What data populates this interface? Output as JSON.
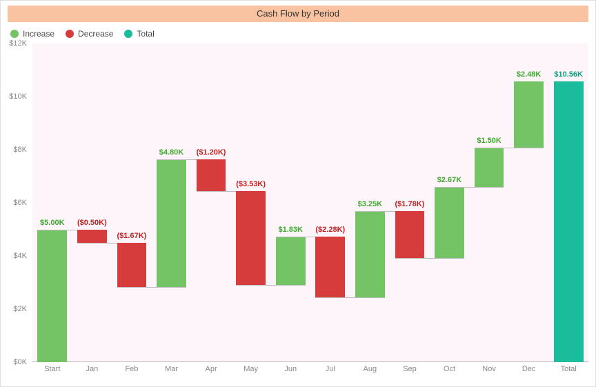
{
  "chart": {
    "type": "waterfall",
    "title": "Cash Flow by Period",
    "title_bg": "#f9c3a1",
    "title_color": "#333333",
    "plot_bg": "#fdf5f9",
    "axis_color": "#b8b8b8",
    "tick_color": "#888888",
    "font_family": "Segoe UI, Arial, sans-serif",
    "legend": [
      {
        "label": "Increase",
        "color": "#74c365"
      },
      {
        "label": "Decrease",
        "color": "#d73c3c"
      },
      {
        "label": "Total",
        "color": "#1abc9c"
      }
    ],
    "y": {
      "min": 0,
      "max": 12,
      "step": 2,
      "unit_prefix": "$",
      "unit_suffix": "K"
    },
    "categories": [
      "Start",
      "Jan",
      "Feb",
      "Mar",
      "Apr",
      "May",
      "Jun",
      "Jul",
      "Aug",
      "Sep",
      "Oct",
      "Nov",
      "Dec",
      "Total"
    ],
    "bars": [
      {
        "label": "$5.00K",
        "type": "increase",
        "start": 0.0,
        "end": 5.0
      },
      {
        "label": "($0.50K)",
        "type": "decrease",
        "start": 5.0,
        "end": 4.5
      },
      {
        "label": "($1.67K)",
        "type": "decrease",
        "start": 4.5,
        "end": 2.83
      },
      {
        "label": "$4.80K",
        "type": "increase",
        "start": 2.83,
        "end": 7.63
      },
      {
        "label": "($1.20K)",
        "type": "decrease",
        "start": 7.63,
        "end": 6.43
      },
      {
        "label": "($3.53K)",
        "type": "decrease",
        "start": 6.43,
        "end": 2.9
      },
      {
        "label": "$1.83K",
        "type": "increase",
        "start": 2.9,
        "end": 4.73
      },
      {
        "label": "($2.28K)",
        "type": "decrease",
        "start": 4.73,
        "end": 2.45
      },
      {
        "label": "$3.25K",
        "type": "increase",
        "start": 2.45,
        "end": 5.7
      },
      {
        "label": "($1.78K)",
        "type": "decrease",
        "start": 5.7,
        "end": 3.92
      },
      {
        "label": "$2.67K",
        "type": "increase",
        "start": 3.92,
        "end": 6.59
      },
      {
        "label": "$1.50K",
        "type": "increase",
        "start": 6.59,
        "end": 8.09
      },
      {
        "label": "$2.48K",
        "type": "increase",
        "start": 8.09,
        "end": 10.57
      },
      {
        "label": "$10.56K",
        "type": "total",
        "start": 0.0,
        "end": 10.56
      }
    ],
    "colors": {
      "increase": "#74c365",
      "decrease": "#d73c3c",
      "total": "#1abc9c"
    },
    "label_colors": {
      "increase": "#3fa82f",
      "decrease": "#c02222",
      "total": "#0f9e82"
    },
    "bar_width_ratio": 0.74,
    "connector_color": "#bbbbbb"
  }
}
